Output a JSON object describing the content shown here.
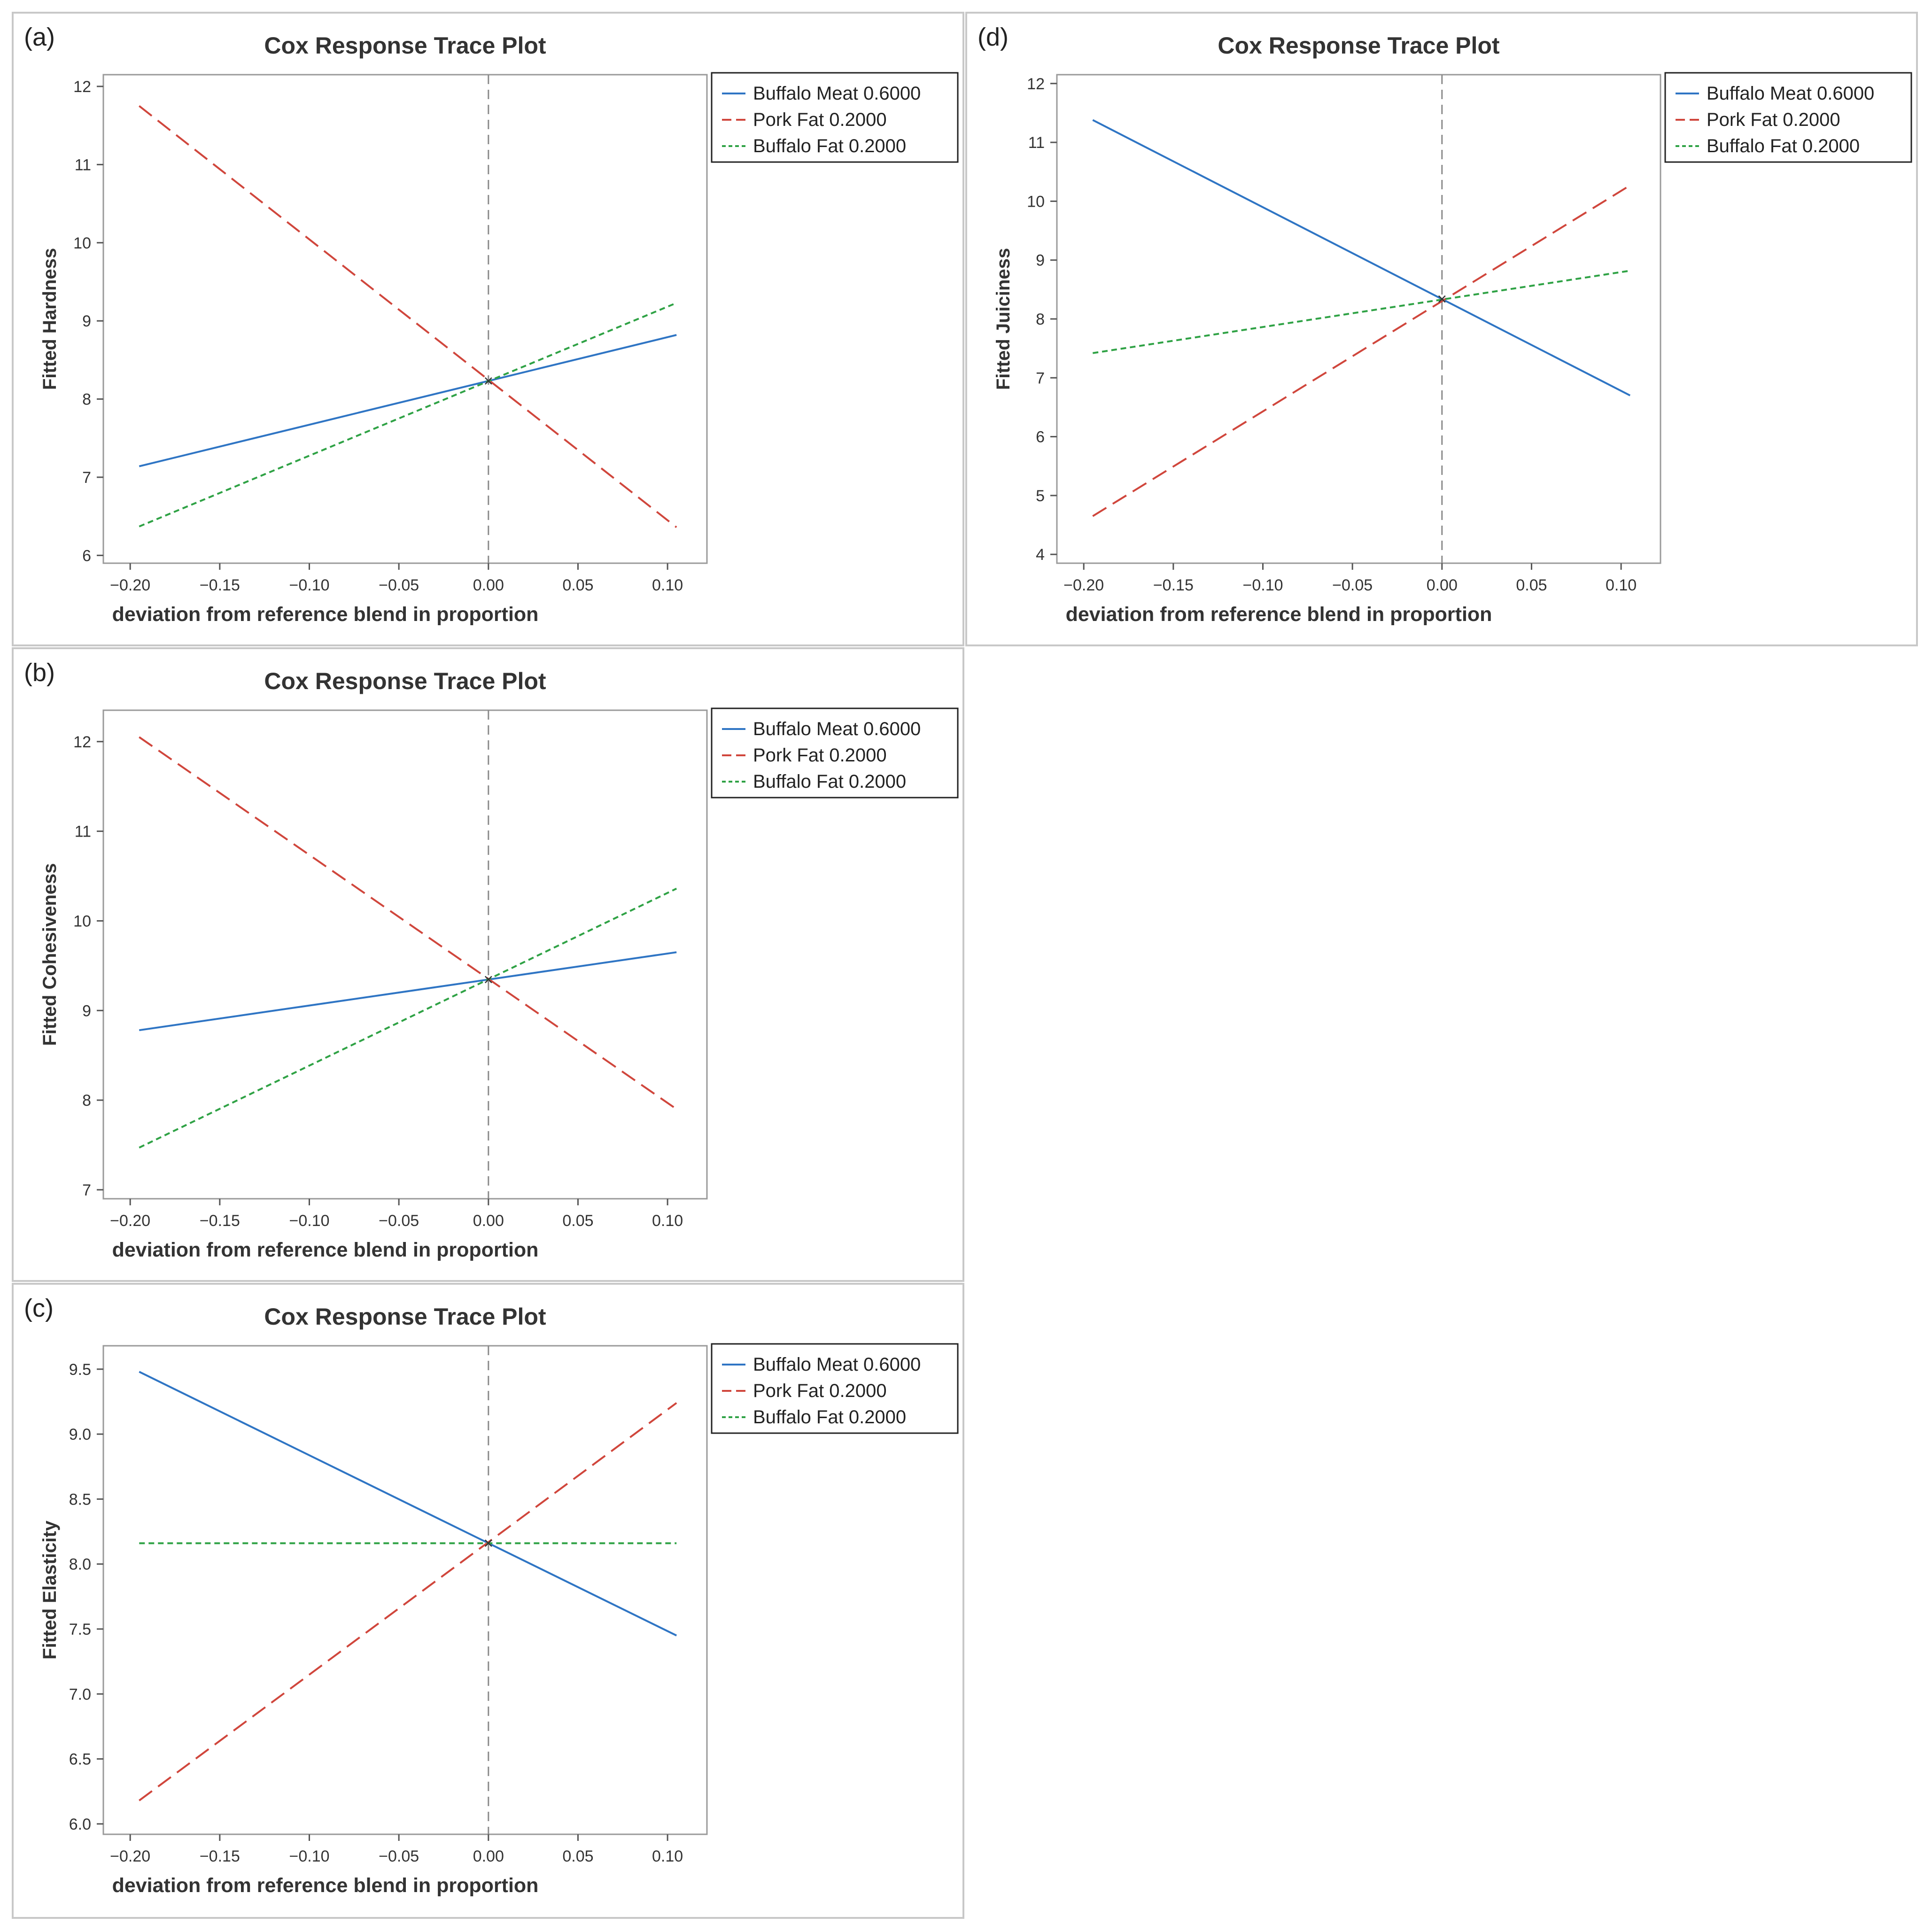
{
  "figure": {
    "panels_order": [
      "a",
      "d",
      "b",
      "c"
    ]
  },
  "chart_data": [
    {
      "panel_label": "(a)",
      "type": "line",
      "title": "Cox Response Trace Plot",
      "xlabel": "deviation from reference blend in proportion",
      "ylabel": "Fitted Hardness",
      "xlim": [
        -0.215,
        0.122
      ],
      "ylim": [
        5.9,
        12.15
      ],
      "xticks": [
        -0.2,
        -0.15,
        -0.1,
        -0.05,
        0.0,
        0.05,
        0.1
      ],
      "xtick_labels": [
        "−0.20",
        "−0.15",
        "−0.10",
        "−0.05",
        "0.00",
        "0.05",
        "0.10"
      ],
      "yticks": [
        6,
        7,
        8,
        9,
        10,
        11,
        12
      ],
      "ytick_labels": [
        "6",
        "7",
        "8",
        "9",
        "10",
        "11",
        "12"
      ],
      "reference_line_x": 0,
      "legend_position": "outside-top-right",
      "series": [
        {
          "name": "Buffalo Meat 0.6000",
          "color": "#2f75c4",
          "dash": "solid",
          "x": [
            -0.195,
            0.105
          ],
          "values": [
            7.14,
            8.82
          ]
        },
        {
          "name": "Pork Fat 0.2000",
          "color": "#d0463c",
          "dash": "dashed",
          "x": [
            -0.195,
            0.105
          ],
          "values": [
            11.75,
            6.36
          ]
        },
        {
          "name": "Buffalo Fat 0.2000",
          "color": "#2fa245",
          "dash": "dotted",
          "x": [
            -0.195,
            0.105
          ],
          "values": [
            6.37,
            9.23
          ]
        }
      ]
    },
    {
      "panel_label": "(d)",
      "type": "line",
      "title": "Cox Response Trace Plot",
      "xlabel": "deviation from reference blend in proportion",
      "ylabel": "Fitted Juiciness",
      "xlim": [
        -0.215,
        0.122
      ],
      "ylim": [
        3.85,
        12.15
      ],
      "xticks": [
        -0.2,
        -0.15,
        -0.1,
        -0.05,
        0.0,
        0.05,
        0.1
      ],
      "xtick_labels": [
        "−0.20",
        "−0.15",
        "−0.10",
        "−0.05",
        "0.00",
        "0.05",
        "0.10"
      ],
      "yticks": [
        4,
        5,
        6,
        7,
        8,
        9,
        10,
        11,
        12
      ],
      "ytick_labels": [
        "4",
        "5",
        "6",
        "7",
        "8",
        "9",
        "10",
        "11",
        "12"
      ],
      "reference_line_x": 0,
      "legend_position": "outside-top-right",
      "series": [
        {
          "name": "Buffalo Meat 0.6000",
          "color": "#2f75c4",
          "dash": "solid",
          "x": [
            -0.195,
            0.105
          ],
          "values": [
            11.38,
            6.7
          ]
        },
        {
          "name": "Pork Fat 0.2000",
          "color": "#d0463c",
          "dash": "dashed",
          "x": [
            -0.195,
            0.105
          ],
          "values": [
            4.65,
            10.27
          ]
        },
        {
          "name": "Buffalo Fat 0.2000",
          "color": "#2fa245",
          "dash": "dotted",
          "x": [
            -0.195,
            0.105
          ],
          "values": [
            7.42,
            8.82
          ]
        }
      ]
    },
    {
      "panel_label": "(b)",
      "type": "line",
      "title": "Cox Response Trace Plot",
      "xlabel": "deviation from reference blend in proportion",
      "ylabel": "Fitted Cohesiveness",
      "xlim": [
        -0.215,
        0.122
      ],
      "ylim": [
        6.9,
        12.35
      ],
      "xticks": [
        -0.2,
        -0.15,
        -0.1,
        -0.05,
        0.0,
        0.05,
        0.1
      ],
      "xtick_labels": [
        "−0.20",
        "−0.15",
        "−0.10",
        "−0.05",
        "0.00",
        "0.05",
        "0.10"
      ],
      "yticks": [
        7,
        8,
        9,
        10,
        11,
        12
      ],
      "ytick_labels": [
        "7",
        "8",
        "9",
        "10",
        "11",
        "12"
      ],
      "reference_line_x": 0,
      "legend_position": "outside-top-right",
      "series": [
        {
          "name": "Buffalo Meat 0.6000",
          "color": "#2f75c4",
          "dash": "solid",
          "x": [
            -0.195,
            0.105
          ],
          "values": [
            8.78,
            9.65
          ]
        },
        {
          "name": "Pork Fat 0.2000",
          "color": "#d0463c",
          "dash": "dashed",
          "x": [
            -0.195,
            0.105
          ],
          "values": [
            12.05,
            7.9
          ]
        },
        {
          "name": "Buffalo Fat 0.2000",
          "color": "#2fa245",
          "dash": "dotted",
          "x": [
            -0.195,
            0.105
          ],
          "values": [
            7.47,
            10.36
          ]
        }
      ]
    },
    {
      "panel_label": "(c)",
      "type": "line",
      "title": "Cox Response Trace Plot",
      "xlabel": "deviation from reference blend in proportion",
      "ylabel": "Fitted Elasticity",
      "xlim": [
        -0.215,
        0.122
      ],
      "ylim": [
        5.92,
        9.68
      ],
      "xticks": [
        -0.2,
        -0.15,
        -0.1,
        -0.05,
        0.0,
        0.05,
        0.1
      ],
      "xtick_labels": [
        "−0.20",
        "−0.15",
        "−0.10",
        "−0.05",
        "0.00",
        "0.05",
        "0.10"
      ],
      "yticks": [
        6.0,
        6.5,
        7.0,
        7.5,
        8.0,
        8.5,
        9.0,
        9.5
      ],
      "ytick_labels": [
        "6.0",
        "6.5",
        "7.0",
        "7.5",
        "8.0",
        "8.5",
        "9.0",
        "9.5"
      ],
      "reference_line_x": 0,
      "legend_position": "outside-top-right",
      "series": [
        {
          "name": "Buffalo Meat 0.6000",
          "color": "#2f75c4",
          "dash": "solid",
          "x": [
            -0.195,
            0.105
          ],
          "values": [
            9.48,
            7.45
          ]
        },
        {
          "name": "Pork Fat 0.2000",
          "color": "#d0463c",
          "dash": "dashed",
          "x": [
            -0.195,
            0.105
          ],
          "values": [
            6.18,
            9.24
          ]
        },
        {
          "name": "Buffalo Fat 0.2000",
          "color": "#2fa245",
          "dash": "dotted",
          "x": [
            -0.195,
            0.105
          ],
          "values": [
            8.16,
            8.16
          ]
        }
      ]
    }
  ]
}
